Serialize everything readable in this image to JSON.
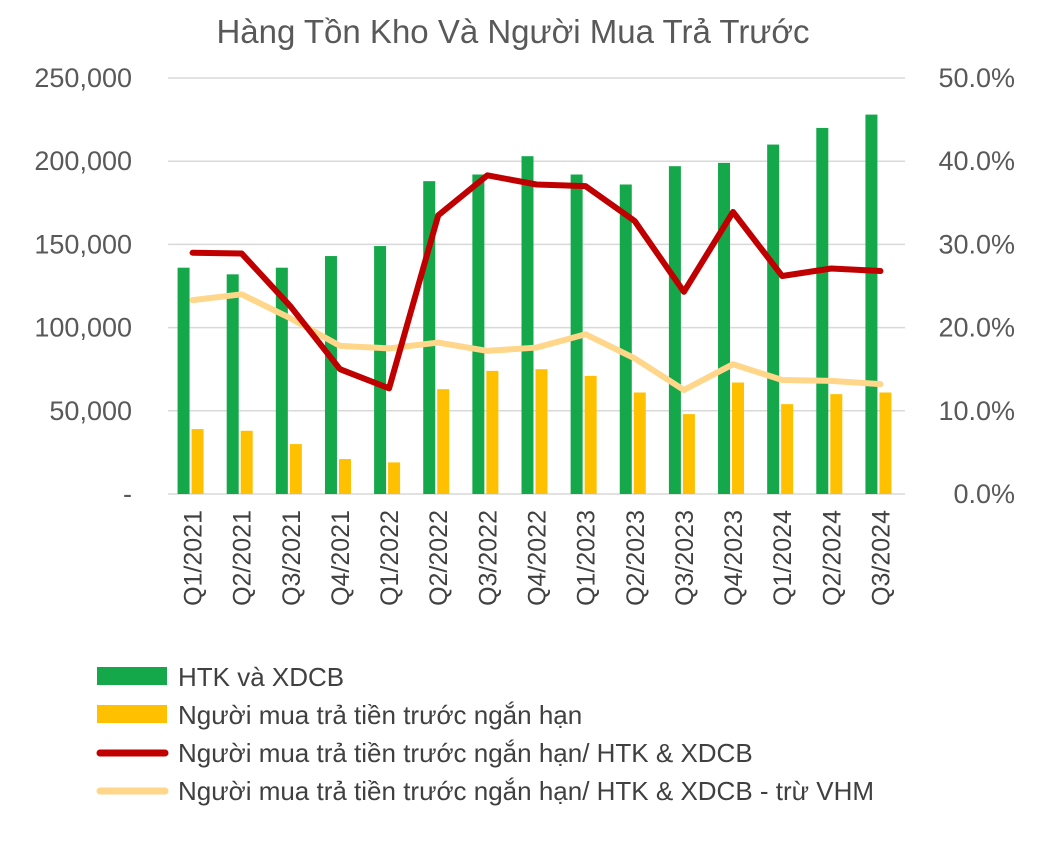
{
  "chart_data": {
    "type": "bar+line",
    "title": "Hàng Tồn Kho Và Người Mua Trả Trước",
    "categories": [
      "Q1/2021",
      "Q2/2021",
      "Q3/2021",
      "Q4/2021",
      "Q1/2022",
      "Q2/2022",
      "Q3/2022",
      "Q4/2022",
      "Q1/2023",
      "Q2/2023",
      "Q3/2023",
      "Q4/2023",
      "Q1/2024",
      "Q2/2024",
      "Q3/2024"
    ],
    "y_left": {
      "min": 0,
      "max": 250000,
      "ticks": [
        {
          "value": 0,
          "label": "-"
        },
        {
          "value": 50000,
          "label": "50,000"
        },
        {
          "value": 100000,
          "label": "100,000"
        },
        {
          "value": 150000,
          "label": "150,000"
        },
        {
          "value": 200000,
          "label": "200,000"
        },
        {
          "value": 250000,
          "label": "250,000"
        }
      ]
    },
    "y_right": {
      "min": 0,
      "max": 50,
      "ticks": [
        {
          "value": 0,
          "label": "0.0%"
        },
        {
          "value": 10,
          "label": "10.0%"
        },
        {
          "value": 20,
          "label": "20.0%"
        },
        {
          "value": 30,
          "label": "30.0%"
        },
        {
          "value": 40,
          "label": "40.0%"
        },
        {
          "value": 50,
          "label": "50.0%"
        }
      ]
    },
    "gridlines": true,
    "legend_position": "bottom",
    "series": [
      {
        "name": "HTK và XDCB",
        "type": "bar",
        "axis": "left",
        "color": "#14A84B",
        "values": [
          136000,
          132000,
          136000,
          143000,
          149000,
          188000,
          192000,
          203000,
          192000,
          186000,
          197000,
          199000,
          210000,
          220000,
          228000
        ]
      },
      {
        "name": "Người mua trả tiền trước ngắn hạn",
        "type": "bar",
        "axis": "left",
        "color": "#FFC000",
        "values": [
          39000,
          38000,
          30000,
          21000,
          19000,
          63000,
          74000,
          75000,
          71000,
          61000,
          48000,
          67000,
          54000,
          60000,
          61000
        ]
      },
      {
        "name": "Người mua trả tiền trước ngắn hạn/ HTK & XDCB",
        "type": "line",
        "axis": "right",
        "color": "#C00000",
        "values": [
          29.0,
          28.9,
          22.5,
          15.0,
          12.7,
          33.5,
          38.3,
          37.2,
          37.0,
          32.8,
          24.3,
          33.9,
          26.2,
          27.1,
          26.8
        ]
      },
      {
        "name": "Người mua trả tiền trước ngắn hạn/ HTK & XDCB - trừ VHM",
        "type": "line",
        "axis": "right",
        "color": "#FFD68A",
        "values": [
          23.3,
          24.0,
          21.1,
          17.8,
          17.5,
          18.2,
          17.2,
          17.6,
          19.2,
          16.3,
          12.5,
          15.6,
          13.7,
          13.6,
          13.2
        ]
      }
    ]
  }
}
